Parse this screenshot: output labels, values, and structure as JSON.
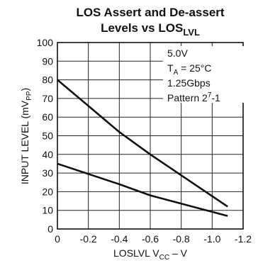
{
  "chart_data": {
    "type": "line",
    "title_line1": "LOS Assert and De-assert",
    "title_line2_main": "Levels vs LOS",
    "title_line2_sub": "LVL",
    "ylabel_main": "INPUT LEVEL (mV",
    "ylabel_sub": "PP",
    "ylabel_tail": ")",
    "xlabel_main": "LOSLVL V",
    "xlabel_sub": "CC",
    "xlabel_tail": " – V",
    "xlim": [
      0,
      -1.2
    ],
    "ylim": [
      0,
      100
    ],
    "x_ticks": [
      0,
      -0.2,
      -0.4,
      -0.6,
      -0.8,
      -1.0,
      -1.2
    ],
    "x_tick_labels": [
      "0",
      "-0.2",
      "-0.4",
      "-0.6",
      "-0.8",
      "-1.0",
      "-1.2"
    ],
    "y_ticks": [
      0,
      10,
      20,
      30,
      40,
      50,
      60,
      70,
      80,
      90,
      100
    ],
    "y_tick_labels": [
      "0",
      "10",
      "20",
      "30",
      "40",
      "50",
      "60",
      "70",
      "80",
      "90",
      "100"
    ],
    "grid": true,
    "series": [
      {
        "x": [
          0,
          -0.4,
          -0.6,
          -1.1
        ],
        "values": [
          80,
          52,
          40,
          12
        ]
      },
      {
        "x": [
          0,
          -0.4,
          -0.6,
          -1.1
        ],
        "values": [
          35,
          24,
          18,
          7
        ]
      }
    ],
    "conditions": {
      "supply": "5.0V",
      "temp_main": "T",
      "temp_sub": "A",
      "temp_tail": " = 25°C",
      "rate": "1.25Gbps",
      "pattern_main": "Pattern 2",
      "pattern_sup": "7",
      "pattern_tail": "-1"
    }
  }
}
